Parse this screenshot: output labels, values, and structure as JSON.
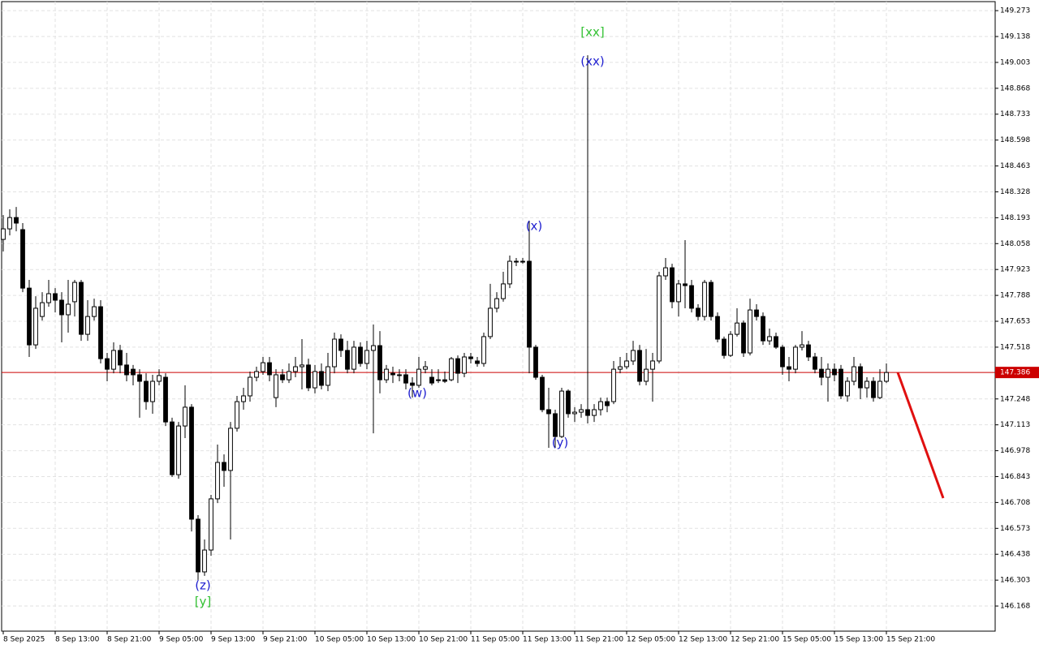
{
  "chart_data": {
    "type": "candlestick",
    "ylim": [
      146.037,
      149.32
    ],
    "xlim": [
      -0.25,
      152.75
    ],
    "yticks": [
      146.168,
      146.303,
      146.438,
      146.573,
      146.708,
      146.843,
      146.978,
      147.113,
      147.248,
      147.518,
      147.653,
      147.788,
      147.923,
      148.058,
      148.193,
      148.328,
      148.463,
      148.598,
      148.733,
      148.868,
      149.003,
      149.138,
      149.273
    ],
    "xticks": [
      {
        "value": 0,
        "label": "8 Sep 2025"
      },
      {
        "value": 8,
        "label": "8 Sep 13:00"
      },
      {
        "value": 16,
        "label": "8 Sep 21:00"
      },
      {
        "value": 24,
        "label": "9 Sep 05:00"
      },
      {
        "value": 32,
        "label": "9 Sep 13:00"
      },
      {
        "value": 40,
        "label": "9 Sep 21:00"
      },
      {
        "value": 48,
        "label": "10 Sep 05:00"
      },
      {
        "value": 56,
        "label": "10 Sep 13:00"
      },
      {
        "value": 64,
        "label": "10 Sep 21:00"
      },
      {
        "value": 72,
        "label": "11 Sep 05:00"
      },
      {
        "value": 80,
        "label": "11 Sep 13:00"
      },
      {
        "value": 88,
        "label": "11 Sep 21:00"
      },
      {
        "value": 96,
        "label": "12 Sep 05:00"
      },
      {
        "value": 104,
        "label": "12 Sep 13:00"
      },
      {
        "value": 112,
        "label": "12 Sep 21:00"
      },
      {
        "value": 120,
        "label": "15 Sep 05:00"
      },
      {
        "value": 128,
        "label": "15 Sep 13:00"
      },
      {
        "value": 136,
        "label": "15 Sep 21:00"
      }
    ],
    "grid": true,
    "up_color": "#ffffff",
    "down_color": "#000000",
    "open": [
      148.08,
      148.135,
      148.194,
      148.131,
      147.826,
      147.53,
      147.678,
      147.75,
      147.797,
      147.763,
      147.687,
      147.755,
      147.856,
      147.585,
      147.678,
      147.729,
      147.458,
      147.403,
      147.501,
      147.425,
      147.403,
      147.374,
      147.34,
      147.234,
      147.34,
      147.361,
      147.128,
      146.853,
      147.107,
      147.205,
      146.621,
      146.346,
      146.46,
      146.727,
      146.917,
      146.875,
      147.095,
      147.234,
      147.264,
      147.361,
      147.391,
      147.437,
      147.255,
      147.374,
      147.348,
      147.391,
      147.416,
      147.425,
      147.306,
      147.391,
      147.319,
      147.416,
      147.56,
      147.501,
      147.403,
      147.518,
      147.433,
      147.501,
      147.526,
      147.348,
      147.382,
      147.374,
      147.374,
      147.331,
      147.319,
      147.403,
      147.361,
      147.348,
      147.348,
      147.348,
      147.458,
      147.382,
      147.467,
      147.446,
      147.433,
      147.573,
      147.721,
      147.771,
      147.848,
      147.966,
      147.966,
      147.966,
      147.518,
      147.361,
      147.192,
      147.171,
      147.052,
      147.289,
      147.171,
      147.179,
      147.192,
      147.162,
      147.192,
      147.234,
      147.234,
      147.403,
      147.416,
      147.446,
      147.501,
      147.34,
      147.403,
      147.446,
      147.89,
      147.932,
      147.755,
      147.848,
      147.839,
      147.721,
      147.678,
      147.856,
      147.678,
      147.56,
      147.475,
      147.585,
      147.644,
      147.488,
      147.712,
      147.678,
      147.551,
      147.573,
      147.518,
      147.416,
      147.403,
      147.518,
      147.53,
      147.467,
      147.403,
      147.361,
      147.403,
      147.403,
      147.264,
      147.34,
      147.416,
      147.306,
      147.34,
      147.255,
      147.34
    ],
    "high": [
      148.207,
      148.237,
      148.249,
      148.165,
      147.869,
      147.784,
      147.805,
      147.869,
      147.826,
      147.805,
      147.869,
      147.869,
      147.869,
      147.763,
      147.771,
      147.763,
      147.488,
      147.543,
      147.53,
      147.488,
      147.425,
      147.403,
      147.382,
      147.374,
      147.403,
      147.382,
      147.15,
      147.128,
      147.319,
      147.221,
      146.642,
      146.515,
      146.748,
      147.01,
      146.959,
      147.128,
      147.264,
      147.306,
      147.391,
      147.416,
      147.467,
      147.467,
      147.403,
      147.403,
      147.433,
      147.467,
      147.56,
      147.458,
      147.425,
      147.433,
      147.488,
      147.594,
      147.585,
      147.551,
      147.551,
      147.543,
      147.551,
      147.636,
      147.602,
      147.425,
      147.416,
      147.403,
      147.403,
      147.361,
      147.467,
      147.446,
      147.403,
      147.403,
      147.391,
      147.467,
      147.475,
      147.488,
      147.488,
      147.467,
      147.594,
      147.848,
      147.805,
      147.911,
      147.996,
      147.983,
      147.983,
      148.177,
      147.53,
      147.374,
      147.306,
      147.192,
      147.306,
      147.298,
      147.205,
      147.221,
      149.04,
      147.221,
      147.255,
      147.255,
      147.446,
      147.467,
      147.488,
      147.551,
      147.53,
      147.509,
      147.488,
      147.911,
      147.983,
      147.953,
      147.869,
      148.076,
      147.869,
      147.742,
      147.869,
      147.869,
      147.699,
      147.573,
      147.602,
      147.721,
      147.657,
      147.771,
      147.742,
      147.699,
      147.615,
      147.594,
      147.53,
      147.467,
      147.53,
      147.602,
      147.551,
      147.488,
      147.467,
      147.433,
      147.433,
      147.425,
      147.361,
      147.467,
      147.433,
      147.361,
      147.361,
      147.403,
      147.433
    ],
    "low": [
      148.017,
      148.101,
      148.122,
      147.805,
      147.467,
      147.509,
      147.657,
      147.729,
      147.699,
      147.543,
      147.594,
      147.678,
      147.551,
      147.551,
      147.657,
      147.433,
      147.34,
      147.382,
      147.382,
      147.34,
      147.319,
      147.15,
      147.192,
      147.171,
      147.319,
      147.107,
      146.841,
      146.832,
      147.044,
      146.557,
      146.304,
      146.325,
      146.43,
      146.705,
      146.79,
      146.515,
      147.078,
      147.192,
      147.234,
      147.34,
      147.374,
      147.34,
      147.205,
      147.331,
      147.331,
      147.361,
      147.298,
      147.289,
      147.277,
      147.298,
      147.289,
      147.382,
      147.467,
      147.382,
      147.382,
      147.416,
      147.403,
      147.069,
      147.277,
      147.331,
      147.331,
      147.34,
      147.298,
      147.255,
      147.306,
      147.382,
      147.319,
      147.331,
      147.331,
      147.34,
      147.331,
      147.361,
      147.433,
      147.416,
      147.416,
      147.56,
      147.699,
      147.755,
      147.826,
      147.941,
      147.953,
      147.382,
      147.348,
      147.179,
      146.993,
      146.993,
      147.044,
      147.15,
      147.128,
      147.15,
      147.12,
      147.128,
      147.162,
      147.179,
      147.221,
      147.382,
      147.403,
      147.425,
      147.319,
      147.319,
      147.234,
      147.433,
      147.869,
      147.721,
      147.678,
      147.721,
      147.699,
      147.657,
      147.657,
      147.657,
      147.543,
      147.458,
      147.467,
      147.573,
      147.467,
      147.475,
      147.657,
      147.53,
      147.53,
      147.509,
      147.374,
      147.34,
      147.382,
      147.501,
      147.446,
      147.382,
      147.319,
      147.234,
      147.34,
      147.247,
      147.234,
      147.319,
      147.247,
      147.255,
      147.234,
      147.247,
      147.331
    ],
    "close": [
      148.135,
      148.194,
      148.165,
      147.826,
      147.53,
      147.721,
      147.75,
      147.797,
      147.763,
      147.687,
      147.742,
      147.856,
      147.585,
      147.678,
      147.729,
      147.458,
      147.403,
      147.501,
      147.425,
      147.374,
      147.374,
      147.34,
      147.234,
      147.34,
      147.37,
      147.128,
      146.853,
      147.107,
      147.205,
      146.621,
      146.346,
      146.46,
      146.727,
      146.917,
      146.875,
      147.095,
      147.234,
      147.264,
      147.361,
      147.391,
      147.437,
      147.374,
      147.374,
      147.348,
      147.391,
      147.416,
      147.425,
      147.306,
      147.391,
      147.319,
      147.416,
      147.56,
      147.501,
      147.403,
      147.518,
      147.433,
      147.501,
      147.526,
      147.348,
      147.403,
      147.374,
      147.37,
      147.331,
      147.319,
      147.403,
      147.416,
      147.331,
      147.346,
      147.34,
      147.458,
      147.382,
      147.467,
      147.458,
      147.433,
      147.573,
      147.721,
      147.771,
      147.848,
      147.966,
      147.962,
      147.962,
      147.518,
      147.361,
      147.192,
      147.171,
      147.052,
      147.289,
      147.171,
      147.179,
      147.192,
      147.162,
      147.192,
      147.234,
      147.213,
      147.403,
      147.416,
      147.446,
      147.501,
      147.34,
      147.403,
      147.446,
      147.89,
      147.932,
      147.755,
      147.848,
      147.839,
      147.721,
      147.678,
      147.856,
      147.678,
      147.56,
      147.475,
      147.585,
      147.644,
      147.488,
      147.712,
      147.678,
      147.551,
      147.573,
      147.518,
      147.416,
      147.403,
      147.518,
      147.53,
      147.467,
      147.403,
      147.361,
      147.403,
      147.374,
      147.264,
      147.34,
      147.416,
      147.306,
      147.34,
      147.255,
      147.34,
      147.386
    ],
    "current_price": 147.386,
    "current_price_color": "#cc0000",
    "projection": {
      "x": [
        137.75,
        144.75
      ],
      "values": [
        147.386,
        146.731
      ],
      "color": "#e01010"
    },
    "annotations": [
      {
        "text": "[xx]",
        "x": 90.75,
        "y": 149.159,
        "color": "#33c133"
      },
      {
        "text": "(xx)",
        "x": 90.75,
        "y": 149.007,
        "color": "#1f1fd0"
      },
      {
        "text": "(x)",
        "x": 81.75,
        "y": 148.148,
        "color": "#1f1fd0"
      },
      {
        "text": "(w)",
        "x": 63.75,
        "y": 147.276,
        "color": "#1f1fd0"
      },
      {
        "text": "(y)",
        "x": 85.75,
        "y": 147.018,
        "color": "#1f1fd0"
      },
      {
        "text": "(z)",
        "x": 30.75,
        "y": 146.274,
        "color": "#1f1fd0"
      },
      {
        "text": "[y]",
        "x": 30.75,
        "y": 146.19,
        "color": "#33c133"
      }
    ]
  }
}
